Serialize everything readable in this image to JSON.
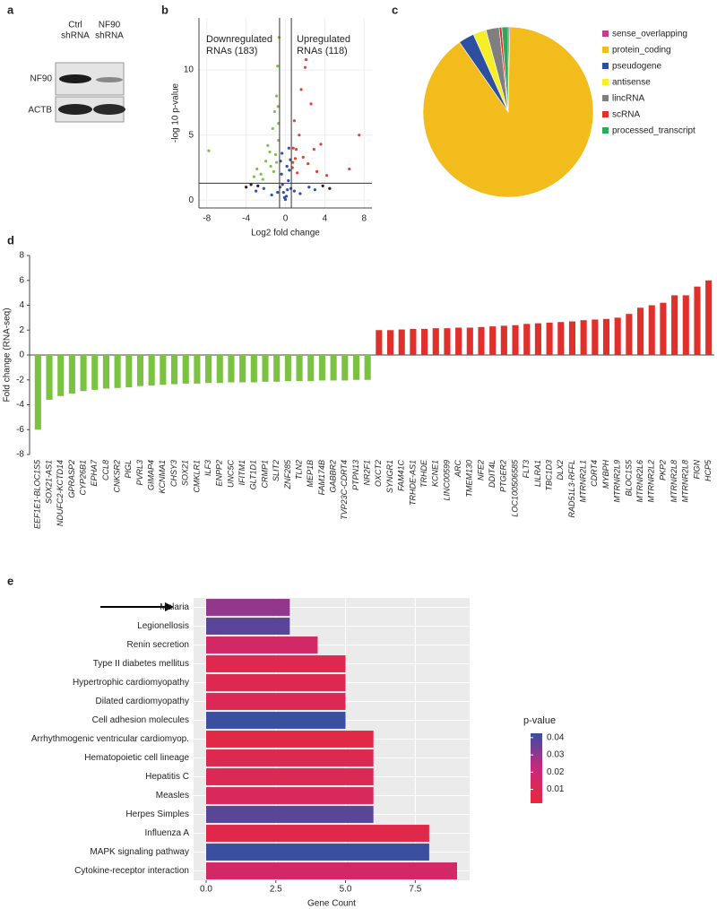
{
  "blot": {
    "panel": "a",
    "columns": [
      [
        "Ctrl",
        "shRNA"
      ],
      [
        "NF90",
        "shRNA"
      ]
    ],
    "rows": [
      "NF90",
      "ACTB"
    ]
  },
  "chart_data": [
    {
      "type": "scatter",
      "panel": "b",
      "xlabel": "Log2 fold change",
      "ylabel": "-log 10 p-value",
      "annotations": [
        [
          "Downregulated",
          "RNAs (183)"
        ],
        [
          "Upregulated",
          "RNAs (118)"
        ]
      ],
      "xlim": [
        -8.8,
        8.8
      ],
      "ylim": [
        -0.6,
        14
      ],
      "xticks": [
        -8,
        -4,
        0,
        4,
        8
      ],
      "yticks": [
        0,
        5,
        10
      ],
      "grid": true,
      "thresholds": {
        "x": [
          -0.6,
          0.6
        ],
        "y": 1.3
      },
      "series": [
        {
          "color": "#7cc24a",
          "x": [
            -7.8,
            -3.2,
            -2.9,
            -2.5,
            -2.0,
            -1.8,
            -1.5,
            -1.3,
            -1.1,
            -1.0,
            -0.9,
            -0.8,
            -0.7,
            -0.65,
            -1.2,
            -2.3,
            -0.9,
            -1.6,
            -0.75,
            -0.7
          ],
          "y": [
            3.8,
            1.8,
            2.4,
            2.0,
            3.0,
            4.2,
            2.6,
            5.5,
            6.8,
            3.5,
            8.0,
            10.3,
            4.6,
            12.5,
            2.2,
            1.6,
            2.9,
            3.7,
            7.2,
            5.9
          ]
        },
        {
          "color": "#e0443c",
          "x": [
            0.7,
            0.8,
            0.9,
            1.0,
            1.2,
            1.4,
            1.6,
            1.8,
            2.0,
            2.3,
            2.6,
            2.9,
            3.2,
            3.6,
            4.2,
            6.5,
            7.5,
            1.1,
            2.1,
            0.75
          ],
          "y": [
            2.5,
            4.0,
            6.1,
            3.2,
            2.1,
            5.0,
            8.5,
            3.3,
            10.2,
            2.8,
            7.4,
            3.9,
            2.2,
            4.3,
            1.9,
            2.4,
            5.0,
            3.9,
            10.8,
            2.9
          ]
        },
        {
          "color": "#2f4fb0",
          "x": [
            -0.5,
            -0.4,
            -0.3,
            -0.2,
            -0.1,
            0,
            0.1,
            0.2,
            0.3,
            0.4,
            0.5,
            -0.55,
            0.55,
            -0.8,
            0.9,
            -1.4,
            1.5,
            -2.2,
            2.4,
            3.0,
            -3.0,
            0.35,
            -0.35,
            0.15
          ],
          "y": [
            3.0,
            2.0,
            1.2,
            0.6,
            0.2,
            0.05,
            0.3,
            0.8,
            1.5,
            2.3,
            3.1,
            1.0,
            0.9,
            0.6,
            0.7,
            0.4,
            0.5,
            0.9,
            1.0,
            0.8,
            0.7,
            4.0,
            3.6,
            2.6
          ]
        },
        {
          "color": "#222222",
          "x": [
            -4.0,
            -3.5,
            3.8,
            4.5,
            -2.8
          ],
          "y": [
            1.0,
            1.2,
            1.1,
            0.9,
            1.1
          ]
        }
      ]
    },
    {
      "type": "pie",
      "panel": "c",
      "categories": [
        "sense_overlapping",
        "protein_coding",
        "pseudogene",
        "antisense",
        "lincRNA",
        "scRNA",
        "processed_transcript"
      ],
      "values": [
        0.3,
        90,
        3,
        2.5,
        2.5,
        0.5,
        1.2
      ],
      "colors": [
        "#c0408a",
        "#f2bd1c",
        "#2e4fa0",
        "#f7ee2a",
        "#7f7f7f",
        "#e0302b",
        "#2aaa5a"
      ]
    },
    {
      "type": "bar",
      "panel": "d",
      "ylabel": "Fold change (RNA-seq)",
      "categories": [
        "EEF1E1-BLOC1S5",
        "SOX21-AS1",
        "NDUFC2-KCTD14",
        "GPRASP2",
        "CYP26B1",
        "EPHA7",
        "CCL8",
        "CNKSR2",
        "PIGL",
        "PVRL3",
        "GIMAP4",
        "KCNMA1",
        "CHSY3",
        "SOX21",
        "CMKLR1",
        "ILF3",
        "ENPP2",
        "UNC5C",
        "IFITM1",
        "GLT1D1",
        "CRMP1",
        "SLIT2",
        "ZNF285",
        "TLN2",
        "MEP1B",
        "FAM174B",
        "GABBR2",
        "TVP23C-CDRT4",
        "PTPN13",
        "NR2F1",
        "OXCT2",
        "SYNGR1",
        "FAM41C",
        "TRHDE-AS1",
        "TRHDE",
        "KCNE1",
        "LINC00599",
        "ARC",
        "TMEM130",
        "NFE2",
        "DDIT4L",
        "PTGER2",
        "LOC100506585",
        "FLT3",
        "LILRA1",
        "TBC1D3",
        "DLX2",
        "RAD51L3-RFFL",
        "MTRNR2L1",
        "CDRT4",
        "MYBPH",
        "MTRNR2L9",
        "BLOC1S5",
        "MTRNR2L6",
        "MTRNR2L2",
        "PKP2",
        "MTRNR2L8",
        "MTRNR2L8",
        "FIGN",
        "HCP5"
      ],
      "values": [
        -6,
        -3.6,
        -3.3,
        -3.1,
        -2.9,
        -2.8,
        -2.7,
        -2.65,
        -2.6,
        -2.5,
        -2.45,
        -2.4,
        -2.35,
        -2.3,
        -2.3,
        -2.25,
        -2.25,
        -2.2,
        -2.2,
        -2.2,
        -2.15,
        -2.15,
        -2.1,
        -2.1,
        -2.1,
        -2.05,
        -2.05,
        -2.05,
        -2.0,
        -2.0,
        2.0,
        2.0,
        2.05,
        2.1,
        2.1,
        2.15,
        2.15,
        2.2,
        2.2,
        2.25,
        2.3,
        2.35,
        2.4,
        2.5,
        2.55,
        2.6,
        2.65,
        2.7,
        2.8,
        2.85,
        2.9,
        3.0,
        3.3,
        3.8,
        4.0,
        4.2,
        4.8,
        4.8,
        5.5,
        6.0
      ],
      "color_negative": "#7cc242",
      "color_positive": "#e0302b",
      "ylim": [
        -8,
        8
      ],
      "yticks": [
        -8,
        -6,
        -4,
        -2,
        0,
        2,
        4,
        6,
        8
      ]
    },
    {
      "type": "hbar",
      "panel": "e",
      "xlabel": "Gene Count",
      "categories": [
        "Malaria",
        "Legionellosis",
        "Renin secretion",
        "Type II diabetes mellitus",
        "Hypertrophic cardiomyopathy",
        "Dilated cardiomyopathy",
        "Cell adhesion molecules",
        "Arrhythmogenic ventricular cardiomyop.",
        "Hematopoietic cell lineage",
        "Hepatitis C",
        "Measles",
        "Herpes Simples",
        "Influenza A",
        "MAPK signaling pathway",
        "Cytokine-receptor interaction"
      ],
      "values": [
        3,
        3,
        4,
        5,
        5,
        5,
        5,
        6,
        6,
        6,
        6,
        6,
        8,
        8,
        9
      ],
      "pvalues": [
        0.03,
        0.038,
        0.015,
        0.008,
        0.009,
        0.01,
        0.048,
        0.006,
        0.009,
        0.01,
        0.012,
        0.038,
        0.007,
        0.047,
        0.015
      ],
      "xlim": [
        -0.45,
        9.45
      ],
      "xticks": [
        {
          "value": 0,
          "label": "0.0"
        },
        2.5,
        {
          "value": 5,
          "label": "5.0"
        },
        7.5
      ],
      "colorbar": {
        "title": "p-value",
        "lim": [
          0.002,
          0.0425
        ],
        "ticks": [
          0.01,
          0.02,
          0.03,
          0.04
        ],
        "colormap": [
          "#e8283a",
          "#c8287e",
          "#3a4fa0"
        ]
      }
    }
  ]
}
